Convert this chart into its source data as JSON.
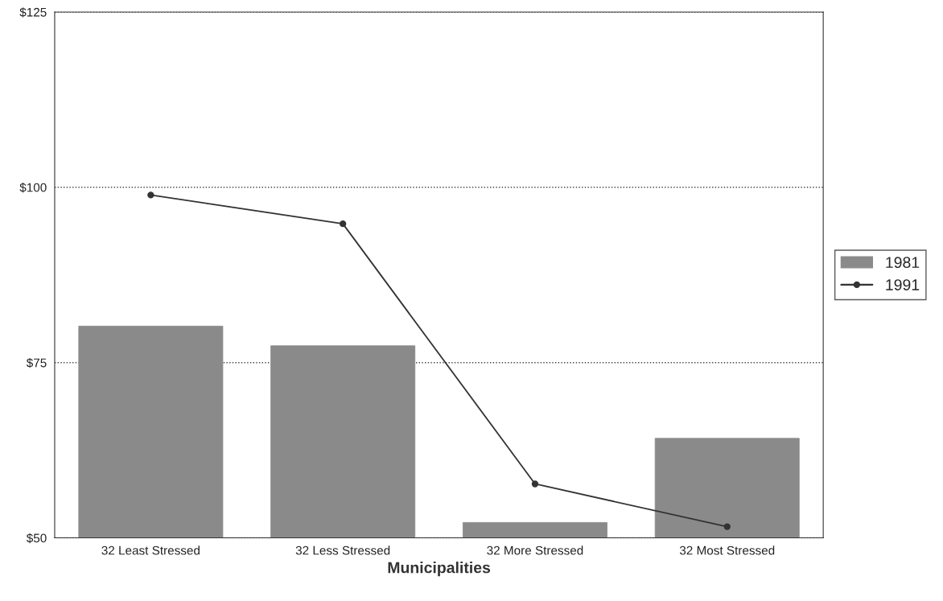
{
  "chart_data": {
    "type": "bar",
    "xlabel": "Municipalities",
    "categories": [
      "32 Least Stressed",
      "32 Less Stressed",
      "32 More Stressed",
      "32 Most Stressed"
    ],
    "series": [
      {
        "name": "1981",
        "color": "#8a8a8a",
        "values": [
          80.2,
          77.4,
          52.2,
          64.2
        ]
      },
      {
        "name": "1991",
        "type": "line",
        "color": "#333333",
        "values": [
          98.9,
          94.8,
          57.7,
          51.6
        ],
        "marker": "circle",
        "line_style": "solid"
      }
    ],
    "ylim": [
      50,
      125
    ],
    "yticks": [
      {
        "value": 50,
        "label": "$50"
      },
      {
        "value": 75,
        "label": "$75"
      },
      {
        "value": 100,
        "label": "$100"
      },
      {
        "value": 125,
        "label": "$125"
      }
    ],
    "grid": "y",
    "legend": "right"
  }
}
